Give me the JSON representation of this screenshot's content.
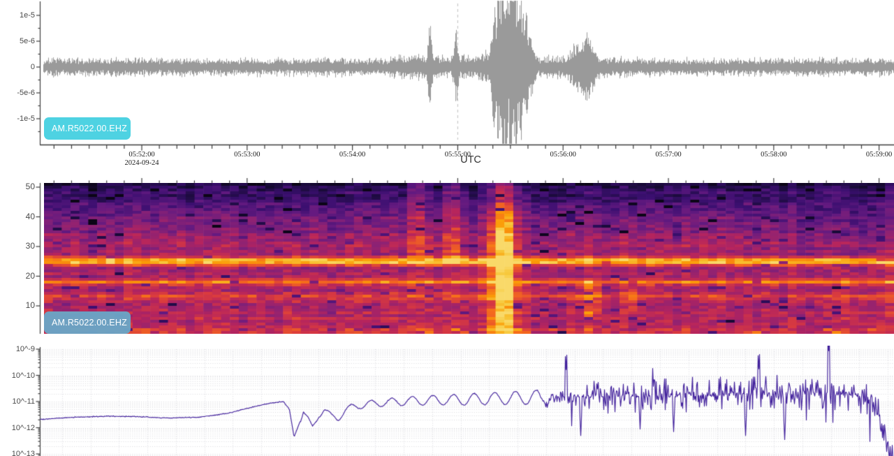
{
  "waveform_panel": {
    "station_label": "AM.R5022.00.EHZ",
    "y_tick_labels": [
      "1e-5",
      "5e-6",
      "0",
      "-5e-6",
      "-1e-5"
    ],
    "x_tick_labels": [
      "05:52:00",
      "05:53:00",
      "05:54:00",
      "05:55:00",
      "05:56:00",
      "05:57:00",
      "05:58:00",
      "05:59:00"
    ],
    "date_label": "2024-09-24",
    "timezone_label": "UTC"
  },
  "spectrogram_panel": {
    "station_label": "AM.R5022.00.EHZ",
    "y_tick_labels": [
      "50",
      "40",
      "30",
      "20",
      "10"
    ]
  },
  "psd_panel": {
    "y_tick_labels": [
      "10^-9",
      "10^-10",
      "10^-11",
      "10^-12",
      "10^-13"
    ]
  },
  "colors": {
    "trace_gray": "#9a9a9a",
    "psd_line": "#41209b",
    "chip_cyan": "#4ed2e2",
    "chip_blue": "#6aa6c6",
    "marker_dash": "#c9c9c9",
    "axis": "#3c3c3c",
    "grid_dot": "#d9d9de"
  },
  "chart_data": [
    {
      "type": "line",
      "panel": "waveform",
      "station": "AM.R5022.00.EHZ",
      "date": "2024-09-24",
      "timezone": "UTC",
      "x_ticks": [
        "05:52:00",
        "05:53:00",
        "05:54:00",
        "05:55:00",
        "05:56:00",
        "05:57:00",
        "05:58:00",
        "05:59:00"
      ],
      "x_range": [
        "05:51:02",
        "05:59:09"
      ],
      "y_ticks": [
        1e-05,
        5e-06,
        0,
        -5e-06,
        -1e-05
      ],
      "ylim": [
        -1.45e-05,
        1.45e-05
      ],
      "background_noise_amp": 1.2e-06,
      "marker_time": "05:55:00",
      "events": [
        {
          "time": "05:54:44",
          "peak_amp": 5.6e-06
        },
        {
          "time": "05:54:59",
          "peak_amp": 4.6e-06
        },
        {
          "time": "05:55:26",
          "peak_amp": 1.45e-05
        },
        {
          "time": "05:56:14",
          "peak_amp": 3.6e-06
        }
      ]
    },
    {
      "type": "heatmap",
      "panel": "spectrogram",
      "station": "AM.R5022.00.EHZ",
      "x_range": [
        "05:51:02",
        "05:59:09"
      ],
      "freq_range_hz": [
        0,
        51
      ],
      "freq_ticks_hz": [
        10,
        20,
        30,
        40,
        50
      ],
      "colormap": "magma",
      "persistent_tones": [
        {
          "hz": 24.8,
          "strength": "strong"
        },
        {
          "hz": 17.8,
          "strength": "medium"
        },
        {
          "hz": 13.2,
          "strength": "weak"
        }
      ],
      "event_columns": [
        {
          "time": "05:54:37",
          "band_hz": [
            28,
            50
          ],
          "strength": "moderate"
        },
        {
          "time": "05:54:57",
          "band_hz": [
            26,
            50
          ],
          "strength": "moderate"
        },
        {
          "time": "05:55:26",
          "band_hz": [
            2,
            50
          ],
          "strength": "strong"
        },
        {
          "time": "05:56:15",
          "band_hz": [
            8,
            16
          ],
          "strength": "moderate"
        },
        {
          "time": "05:56:40",
          "band_hz": [
            9,
            15
          ],
          "strength": "weak"
        }
      ]
    },
    {
      "type": "line",
      "panel": "spectrum",
      "yscale": "log",
      "y_ticks": [
        "10^-9",
        "10^-10",
        "10^-11",
        "10^-12",
        "10^-13"
      ],
      "ylim_log10": [
        -13.2,
        -9
      ],
      "envelope_frac_log10": [
        [
          0,
          -11.68
        ],
        [
          0.04,
          -11.6
        ],
        [
          0.08,
          -11.56
        ],
        [
          0.115,
          -11.58
        ],
        [
          0.15,
          -11.63
        ],
        [
          0.185,
          -11.6
        ],
        [
          0.22,
          -11.45
        ],
        [
          0.25,
          -11.2
        ],
        [
          0.272,
          -11.05
        ],
        [
          0.285,
          -11.0
        ],
        [
          0.292,
          -11.3
        ],
        [
          0.2975,
          -12.35
        ],
        [
          0.303,
          -11.9
        ],
        [
          0.3085,
          -11.4
        ],
        [
          0.3135,
          -11.65
        ],
        [
          0.319,
          -12.0
        ],
        [
          0.326,
          -11.55
        ],
        [
          0.333,
          -11.3
        ],
        [
          0.341,
          -11.55
        ],
        [
          0.349,
          -11.65
        ],
        [
          0.357,
          -11.35
        ],
        [
          0.366,
          -11.2
        ],
        [
          0.38,
          -11.12
        ],
        [
          0.4,
          -11.05
        ],
        [
          0.43,
          -10.98
        ],
        [
          0.46,
          -10.95
        ],
        [
          0.5,
          -10.92
        ],
        [
          0.54,
          -10.88
        ],
        [
          0.575,
          -10.85
        ],
        [
          0.61,
          -10.82
        ],
        [
          0.645,
          -10.8
        ],
        [
          0.69,
          -10.78
        ],
        [
          0.74,
          -10.74
        ],
        [
          0.79,
          -10.72
        ],
        [
          0.84,
          -10.68
        ],
        [
          0.885,
          -10.65
        ],
        [
          0.92,
          -10.66
        ],
        [
          0.94,
          -10.7
        ],
        [
          0.955,
          -10.78
        ],
        [
          0.968,
          -10.95
        ],
        [
          0.979,
          -11.3
        ],
        [
          0.9875,
          -11.95
        ],
        [
          0.994,
          -12.65
        ],
        [
          1,
          -13.4
        ]
      ],
      "peaks_frac_log10": [
        [
          0.616,
          -9.78
        ],
        [
          0.842,
          -9.75
        ],
        [
          0.9235,
          -9.06
        ]
      ],
      "dips_frac_log10": [
        [
          0.633,
          -12.3
        ],
        [
          0.703,
          -12.05
        ],
        [
          0.742,
          -12.15
        ],
        [
          0.8265,
          -12.3
        ],
        [
          0.872,
          -12.45
        ]
      ],
      "wiggle": {
        "start_frac": 0.305,
        "end_frac": 0.6,
        "amp_log10": 0.28
      },
      "noise_band_log10_amp": 0.42
    }
  ]
}
